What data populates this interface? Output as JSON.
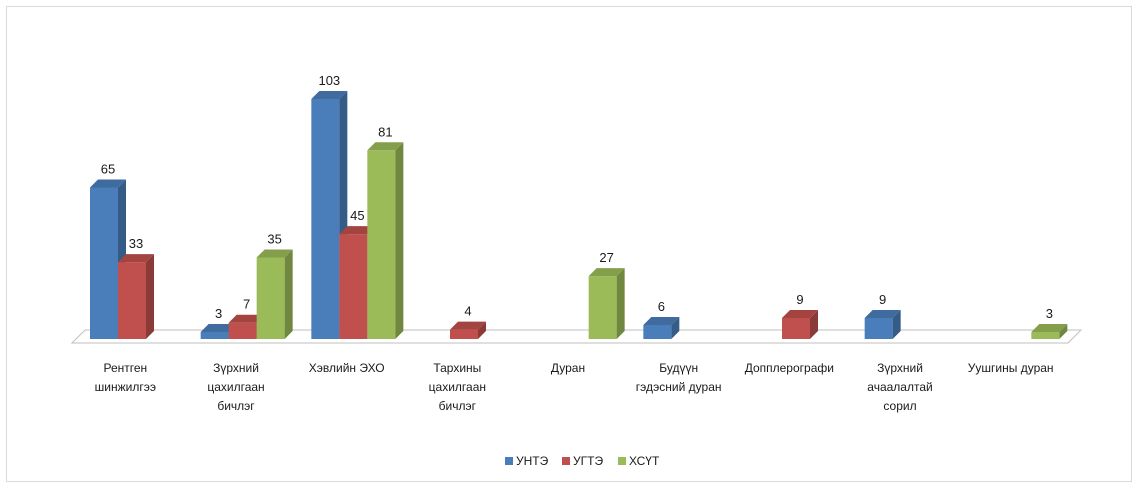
{
  "chart_data": {
    "type": "bar",
    "categories": [
      [
        "Рентген",
        "шинжилгээ"
      ],
      [
        "Зүрхний",
        "цахилгаан",
        "бичлэг"
      ],
      [
        "Хэвлийн ЭХО"
      ],
      [
        "Тархины",
        "цахилгаан",
        "бичлэг"
      ],
      [
        "Дуран"
      ],
      [
        "Будүүн",
        "гэдэсний дуран"
      ],
      [
        "Допплерографи"
      ],
      [
        "Зүрхний",
        "ачаалалтай",
        "сорил"
      ],
      [
        "Уушгины дуран"
      ]
    ],
    "series": [
      {
        "name": "УНТЭ",
        "color": "#4a7ebb",
        "values": [
          65,
          3,
          103,
          null,
          null,
          6,
          null,
          9,
          null
        ]
      },
      {
        "name": "УГТЭ",
        "color": "#c0504d",
        "values": [
          33,
          7,
          45,
          4,
          null,
          null,
          9,
          null,
          null
        ]
      },
      {
        "name": "ХСҮТ",
        "color": "#9bbb59",
        "values": [
          null,
          35,
          81,
          null,
          27,
          null,
          null,
          null,
          3
        ]
      }
    ],
    "ylim": [
      0,
      110
    ],
    "legend_position": "bottom",
    "grid": false,
    "three_d": true
  }
}
